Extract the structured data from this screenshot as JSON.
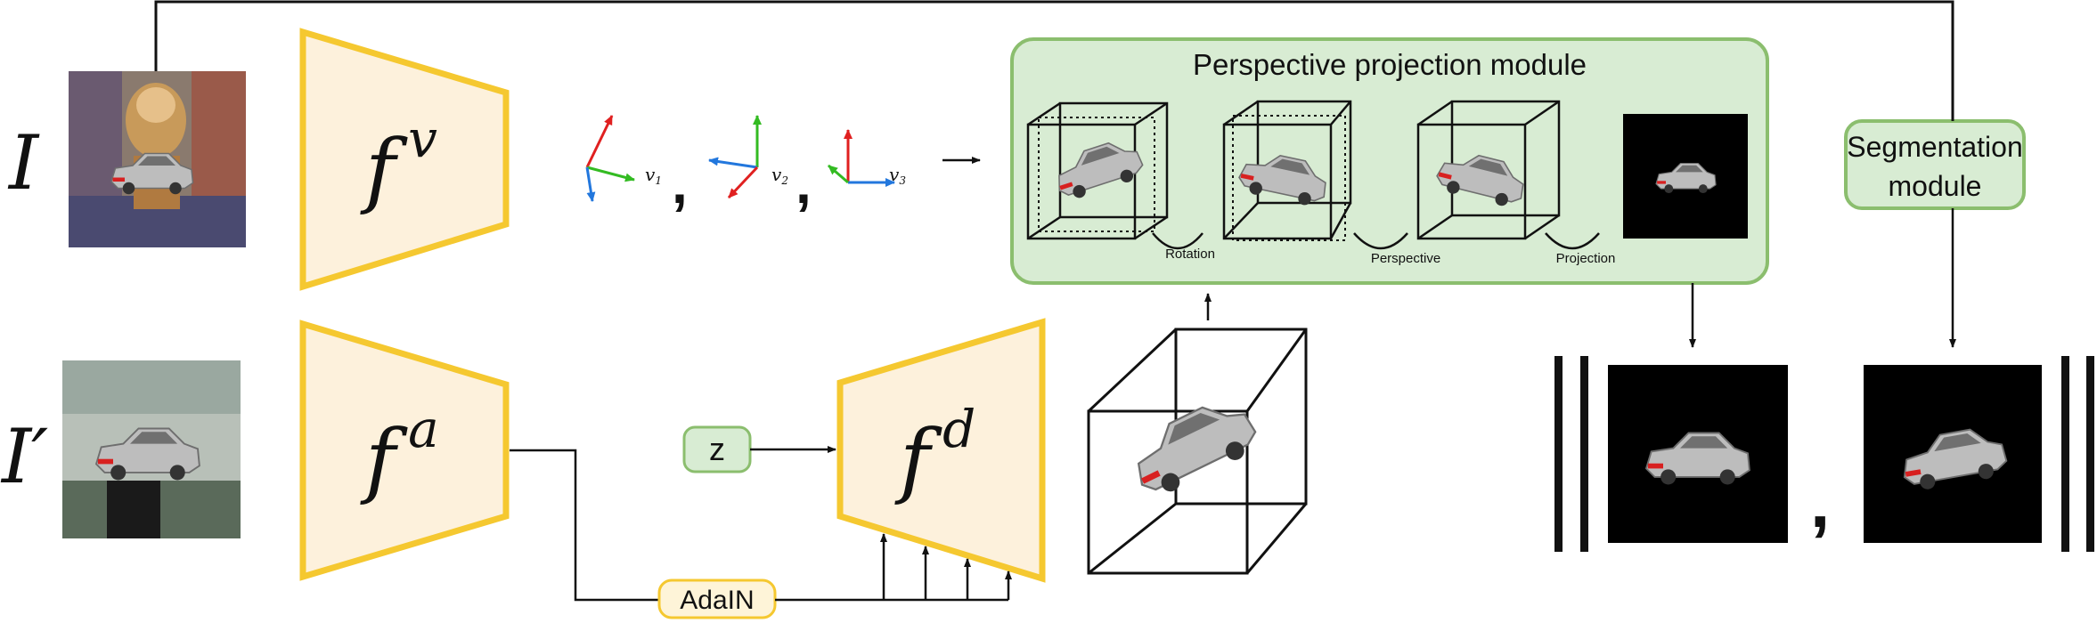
{
  "inputs": {
    "image_top_label": "I",
    "image_bottom_label": "I′"
  },
  "encoders": {
    "viewpoint": {
      "base": "f",
      "sup": "v"
    },
    "appearance": {
      "base": "f",
      "sup": "a"
    },
    "decoder": {
      "base": "f",
      "sup": "d"
    }
  },
  "viewpoints": {
    "items": [
      {
        "name": "v",
        "sub": "1"
      },
      {
        "name": "v",
        "sub": "2"
      },
      {
        "name": "v",
        "sub": "3"
      }
    ],
    "separator": ","
  },
  "noise_label": "z",
  "adain_label": "AdaIN",
  "projection_module": {
    "title": "Perspective projection module",
    "steps": [
      "Rotation",
      "Perspective",
      "Projection"
    ]
  },
  "segmentation_module": {
    "line1": "Segmentation",
    "line2": "module"
  },
  "output_separator": ",",
  "colors": {
    "encoder_fill": "#fdf1dc",
    "encoder_stroke": "#f5c830",
    "module_fill": "#d8ecd3",
    "module_stroke": "#8bbe6e",
    "adain_fill": "#fef4d8",
    "axis_red": "#e02020",
    "axis_green": "#33bb22",
    "axis_blue": "#2277dd"
  }
}
